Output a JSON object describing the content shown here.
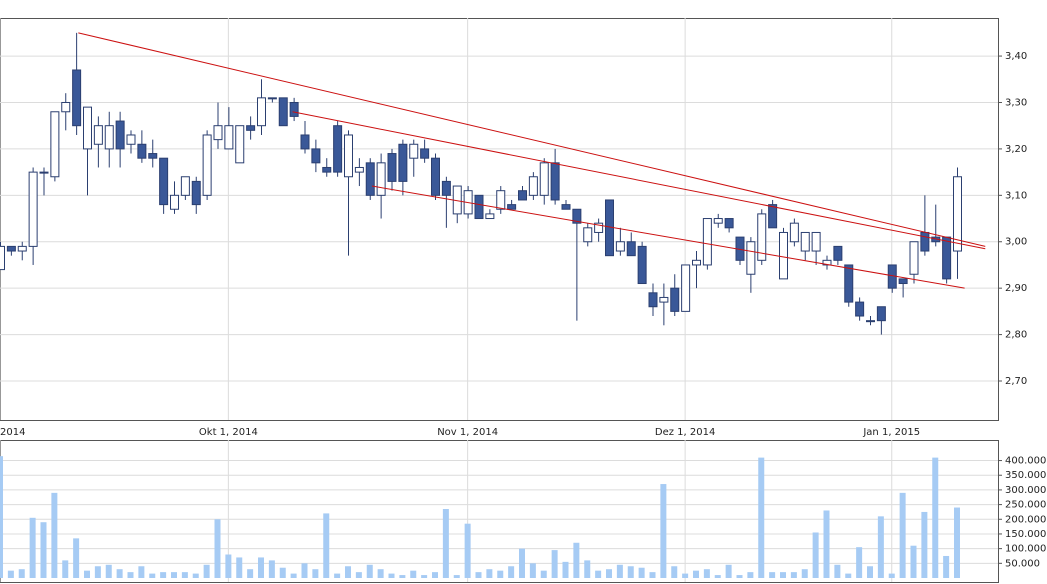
{
  "chart_data": [
    {
      "type": "candlestick",
      "categories": [
        "2014",
        null,
        null,
        null,
        null,
        null,
        null,
        null,
        null,
        null,
        null,
        null,
        null,
        null,
        null,
        null,
        null,
        null,
        null,
        null,
        null,
        "Okt 1, 2014",
        null,
        null,
        null,
        null,
        null,
        null,
        null,
        null,
        null,
        null,
        null,
        null,
        null,
        null,
        null,
        null,
        null,
        null,
        null,
        null,
        null,
        "Nov 1, 2014",
        null,
        null,
        null,
        null,
        null,
        null,
        null,
        null,
        null,
        null,
        null,
        null,
        null,
        null,
        null,
        null,
        null,
        null,
        null,
        "Dez 1, 2014",
        null,
        null,
        null,
        null,
        null,
        null,
        null,
        null,
        null,
        null,
        null,
        null,
        null,
        null,
        null,
        null,
        null,
        null,
        "Jan 1, 2015",
        null,
        null,
        null,
        null,
        null,
        null
      ],
      "open": [
        2.94,
        2.99,
        2.98,
        2.99,
        3.15,
        3.14,
        3.28,
        3.37,
        3.2,
        3.21,
        3.2,
        3.26,
        3.21,
        3.21,
        3.19,
        3.18,
        3.07,
        3.1,
        3.13,
        3.1,
        3.22,
        3.2,
        3.17,
        3.25,
        3.25,
        3.31,
        3.31,
        3.3,
        3.23,
        3.2,
        3.16,
        3.25,
        3.14,
        3.15,
        3.17,
        3.1,
        3.19,
        3.21,
        3.18,
        3.2,
        3.18,
        3.13,
        3.06,
        3.06,
        3.1,
        3.05,
        3.07,
        3.08,
        3.11,
        3.1,
        3.1,
        3.17,
        3.08,
        3.07,
        3.0,
        3.02,
        3.09,
        2.98,
        3.0,
        2.99,
        2.89,
        2.87,
        2.9,
        2.85,
        2.95,
        2.95,
        3.04,
        3.05,
        3.01,
        2.93,
        2.96,
        3.08,
        2.92,
        3.0,
        2.98,
        2.98,
        2.95,
        2.99,
        2.95,
        2.87,
        2.83,
        2.86,
        2.95,
        2.92,
        2.93,
        3.02,
        3.01,
        3.01,
        2.98
      ],
      "high": [
        3.0,
        2.99,
        3.0,
        3.16,
        3.16,
        3.28,
        3.32,
        3.45,
        3.29,
        3.27,
        3.28,
        3.28,
        3.24,
        3.24,
        3.22,
        3.18,
        3.13,
        3.14,
        3.14,
        3.24,
        3.3,
        3.29,
        3.25,
        3.27,
        3.35,
        3.31,
        3.31,
        3.31,
        3.26,
        3.22,
        3.18,
        3.26,
        3.24,
        3.18,
        3.18,
        3.19,
        3.2,
        3.22,
        3.22,
        3.22,
        3.19,
        3.14,
        3.12,
        3.12,
        3.1,
        3.07,
        3.12,
        3.09,
        3.12,
        3.15,
        3.18,
        3.2,
        3.09,
        3.07,
        3.04,
        3.05,
        3.09,
        3.03,
        3.02,
        3.0,
        2.91,
        2.91,
        2.93,
        2.95,
        2.98,
        3.05,
        3.06,
        3.05,
        3.01,
        3.01,
        3.07,
        3.09,
        3.03,
        3.05,
        3.02,
        3.02,
        2.97,
        2.99,
        2.95,
        2.88,
        2.84,
        2.86,
        2.95,
        2.92,
        3.0,
        3.1,
        3.08,
        3.01,
        3.16
      ],
      "low": [
        2.94,
        2.97,
        2.96,
        2.95,
        3.1,
        3.13,
        3.24,
        3.23,
        3.1,
        3.16,
        3.16,
        3.16,
        3.19,
        3.17,
        3.16,
        3.06,
        3.06,
        3.09,
        3.06,
        3.09,
        3.2,
        3.2,
        3.17,
        3.22,
        3.23,
        3.3,
        3.25,
        3.26,
        3.19,
        3.15,
        3.14,
        3.14,
        2.97,
        3.12,
        3.09,
        3.05,
        3.11,
        3.1,
        3.14,
        3.17,
        3.09,
        3.03,
        3.04,
        3.05,
        3.05,
        3.05,
        3.06,
        3.07,
        3.09,
        3.09,
        3.08,
        3.08,
        3.07,
        2.83,
        2.99,
        3.0,
        2.97,
        2.97,
        2.97,
        2.91,
        2.84,
        2.82,
        2.84,
        2.85,
        2.9,
        2.94,
        3.03,
        3.02,
        2.95,
        2.89,
        2.95,
        3.03,
        2.92,
        2.99,
        2.96,
        2.95,
        2.94,
        2.95,
        2.86,
        2.83,
        2.82,
        2.8,
        2.89,
        2.88,
        2.91,
        2.97,
        2.99,
        2.91,
        2.92
      ],
      "close": [
        2.99,
        2.98,
        2.99,
        3.15,
        3.15,
        3.28,
        3.3,
        3.25,
        3.29,
        3.25,
        3.25,
        3.2,
        3.23,
        3.18,
        3.18,
        3.08,
        3.1,
        3.14,
        3.08,
        3.23,
        3.25,
        3.25,
        3.25,
        3.24,
        3.31,
        3.31,
        3.25,
        3.27,
        3.2,
        3.17,
        3.15,
        3.15,
        3.23,
        3.16,
        3.1,
        3.17,
        3.13,
        3.13,
        3.21,
        3.18,
        3.1,
        3.1,
        3.12,
        3.11,
        3.05,
        3.06,
        3.11,
        3.07,
        3.09,
        3.14,
        3.17,
        3.09,
        3.07,
        3.04,
        3.03,
        3.04,
        2.97,
        3.0,
        2.97,
        2.91,
        2.86,
        2.88,
        2.85,
        2.95,
        2.96,
        3.05,
        3.05,
        3.03,
        2.96,
        3.0,
        3.06,
        3.03,
        3.02,
        3.04,
        3.02,
        3.02,
        2.96,
        2.96,
        2.87,
        2.84,
        2.83,
        2.83,
        2.9,
        2.91,
        3.0,
        2.98,
        3.0,
        2.92,
        3.14
      ],
      "ylim": [
        2.616,
        3.482
      ],
      "yticks": [
        {
          "value": 3.4,
          "label": "3,40"
        },
        {
          "value": 3.3,
          "label": "3,30"
        },
        {
          "value": 3.2,
          "label": "3,20"
        },
        {
          "value": 3.1,
          "label": "3,10"
        },
        {
          "value": 3.0,
          "label": "3,00"
        },
        {
          "value": 2.9,
          "label": "2,90"
        },
        {
          "value": 2.8,
          "label": "2,80"
        },
        {
          "value": 2.7,
          "label": "2,70"
        }
      ],
      "grid": true,
      "up_color": "#ffffff",
      "down_color": "#3a5898",
      "edge_color": "#2b3f70",
      "trendlines": [
        {
          "color": "#cc1111",
          "x": [
            7.2,
            90.6
          ],
          "y": [
            3.45,
            2.99
          ]
        },
        {
          "color": "#cc1111",
          "x": [
            26.9,
            90.6
          ],
          "y": [
            3.28,
            2.985
          ]
        },
        {
          "color": "#cc1111",
          "x": [
            34.2,
            88.7
          ],
          "y": [
            3.12,
            2.9
          ]
        }
      ]
    },
    {
      "type": "bar",
      "values": [
        415000,
        25000,
        30000,
        205000,
        190000,
        290000,
        60000,
        135000,
        25000,
        40000,
        45000,
        30000,
        20000,
        40000,
        15000,
        20000,
        20000,
        20000,
        15000,
        45000,
        200000,
        80000,
        70000,
        30000,
        70000,
        60000,
        35000,
        15000,
        50000,
        30000,
        220000,
        15000,
        40000,
        20000,
        45000,
        30000,
        15000,
        10000,
        25000,
        10000,
        20000,
        235000,
        10000,
        185000,
        20000,
        30000,
        25000,
        40000,
        100000,
        50000,
        25000,
        95000,
        55000,
        120000,
        60000,
        25000,
        30000,
        45000,
        40000,
        35000,
        20000,
        320000,
        40000,
        15000,
        25000,
        30000,
        10000,
        45000,
        10000,
        20000,
        410000,
        20000,
        20000,
        20000,
        30000,
        155000,
        230000,
        45000,
        15000,
        105000,
        40000,
        210000,
        15000,
        290000,
        110000,
        225000,
        410000,
        75000,
        240000
      ],
      "color": "#a6cbf4",
      "ylim": [
        0,
        470000
      ],
      "yticks": [
        {
          "value": 400000,
          "label": "400.000"
        },
        {
          "value": 350000,
          "label": "350.000"
        },
        {
          "value": 300000,
          "label": "300.000"
        },
        {
          "value": 250000,
          "label": "250.000"
        },
        {
          "value": 200000,
          "label": "200.000"
        },
        {
          "value": 150000,
          "label": "150.000"
        },
        {
          "value": 100000,
          "label": "100.000"
        },
        {
          "value": 50000,
          "label": "50.000"
        }
      ],
      "grid": true
    }
  ]
}
